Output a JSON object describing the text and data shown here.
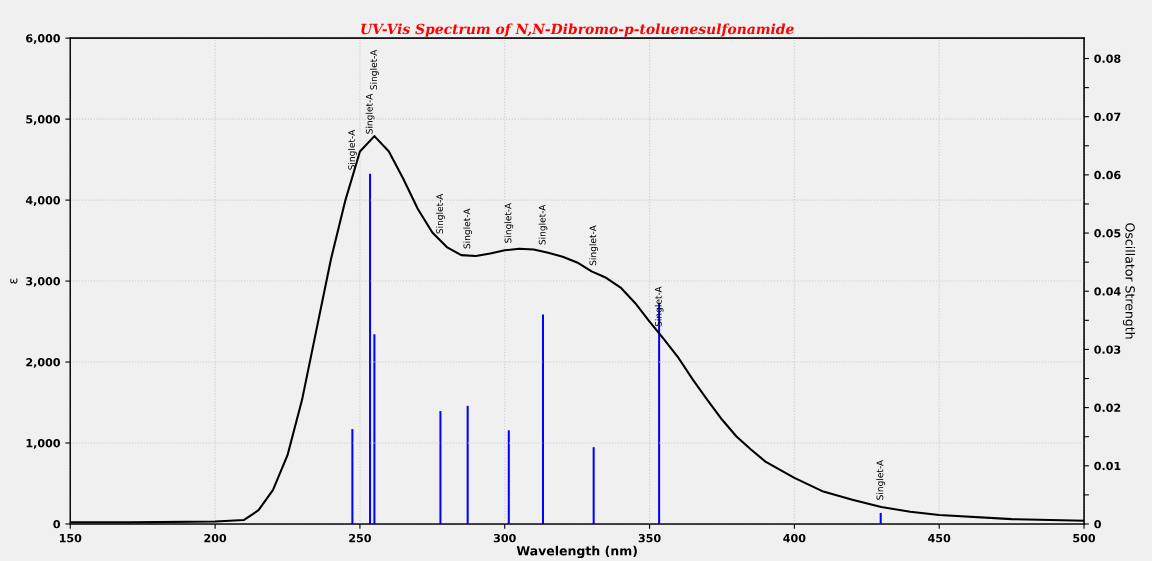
{
  "chart_data": {
    "type": "line",
    "title": "UV-Vis Spectrum of N,N-Dibromo-p-toluenesulfonamide",
    "xlabel": "Wavelength (nm)",
    "ylabel": "ε",
    "y2label": "Oscillator Strength",
    "series": [
      {
        "color": "#000000",
        "x": [
          150,
          170,
          200,
          205,
          210,
          215,
          220,
          225,
          230,
          235,
          240,
          245,
          250,
          255,
          260,
          265,
          270,
          275,
          280,
          285,
          290,
          295,
          300,
          305,
          310,
          315,
          320,
          325,
          330,
          335,
          340,
          345,
          350,
          355,
          360,
          365,
          370,
          375,
          380,
          385,
          390,
          400,
          410,
          420,
          430,
          440,
          450,
          475,
          500
        ],
        "values": [
          20,
          20,
          30,
          40,
          50,
          170,
          420,
          850,
          1530,
          2400,
          3270,
          4000,
          4600,
          4790,
          4600,
          4260,
          3890,
          3600,
          3420,
          3320,
          3310,
          3340,
          3380,
          3400,
          3390,
          3350,
          3300,
          3230,
          3120,
          3040,
          2920,
          2730,
          2500,
          2280,
          2050,
          1780,
          1530,
          1290,
          1080,
          920,
          770,
          570,
          400,
          300,
          210,
          150,
          110,
          60,
          40
        ]
      },
      {
        "type": "bar",
        "axis": "y2",
        "color": "#0000ff",
        "x": [
          247.4,
          253.5,
          255,
          277.8,
          287.2,
          301.4,
          313.2,
          330.7,
          353.3,
          429.8
        ],
        "values": [
          0.0163,
          0.0602,
          0.0326,
          0.0194,
          0.0203,
          0.0161,
          0.036,
          0.0132,
          0.0379,
          0.0019
        ]
      }
    ],
    "xlim": [
      150,
      500
    ],
    "xticks": [
      150,
      200,
      250,
      300,
      350,
      400,
      450,
      500
    ],
    "ylim": [
      0,
      6000
    ],
    "yticks": [
      0,
      {
        "value": 1000,
        "label": "1,000"
      },
      {
        "value": 2000,
        "label": "2,000"
      },
      {
        "value": 3000,
        "label": "3,000"
      },
      {
        "value": 4000,
        "label": "4,000"
      },
      {
        "value": 5000,
        "label": "5,000"
      },
      {
        "value": 6000,
        "label": "6,000"
      }
    ],
    "y2lim": [
      0,
      0.0835
    ],
    "y2ticks": [
      0,
      {
        "value": 0.005,
        "label": null
      },
      0.01,
      {
        "value": 0.015,
        "label": null
      },
      0.02,
      {
        "value": 0.025,
        "label": null
      },
      0.03,
      {
        "value": 0.035,
        "label": null
      },
      0.04,
      {
        "value": 0.045,
        "label": null
      },
      0.05,
      {
        "value": 0.055,
        "label": null
      },
      0.06,
      {
        "value": 0.065,
        "label": null
      },
      0.07,
      {
        "value": 0.075,
        "label": null
      },
      0.08
    ],
    "grid": true,
    "annotations": [
      "Singlet-A",
      "Singlet-A",
      "Singlet-A",
      "Singlet-A",
      "Singlet-A",
      "Singlet-A",
      "Singlet-A",
      "Singlet-A",
      "Singlet-A",
      "Singlet-A"
    ]
  }
}
